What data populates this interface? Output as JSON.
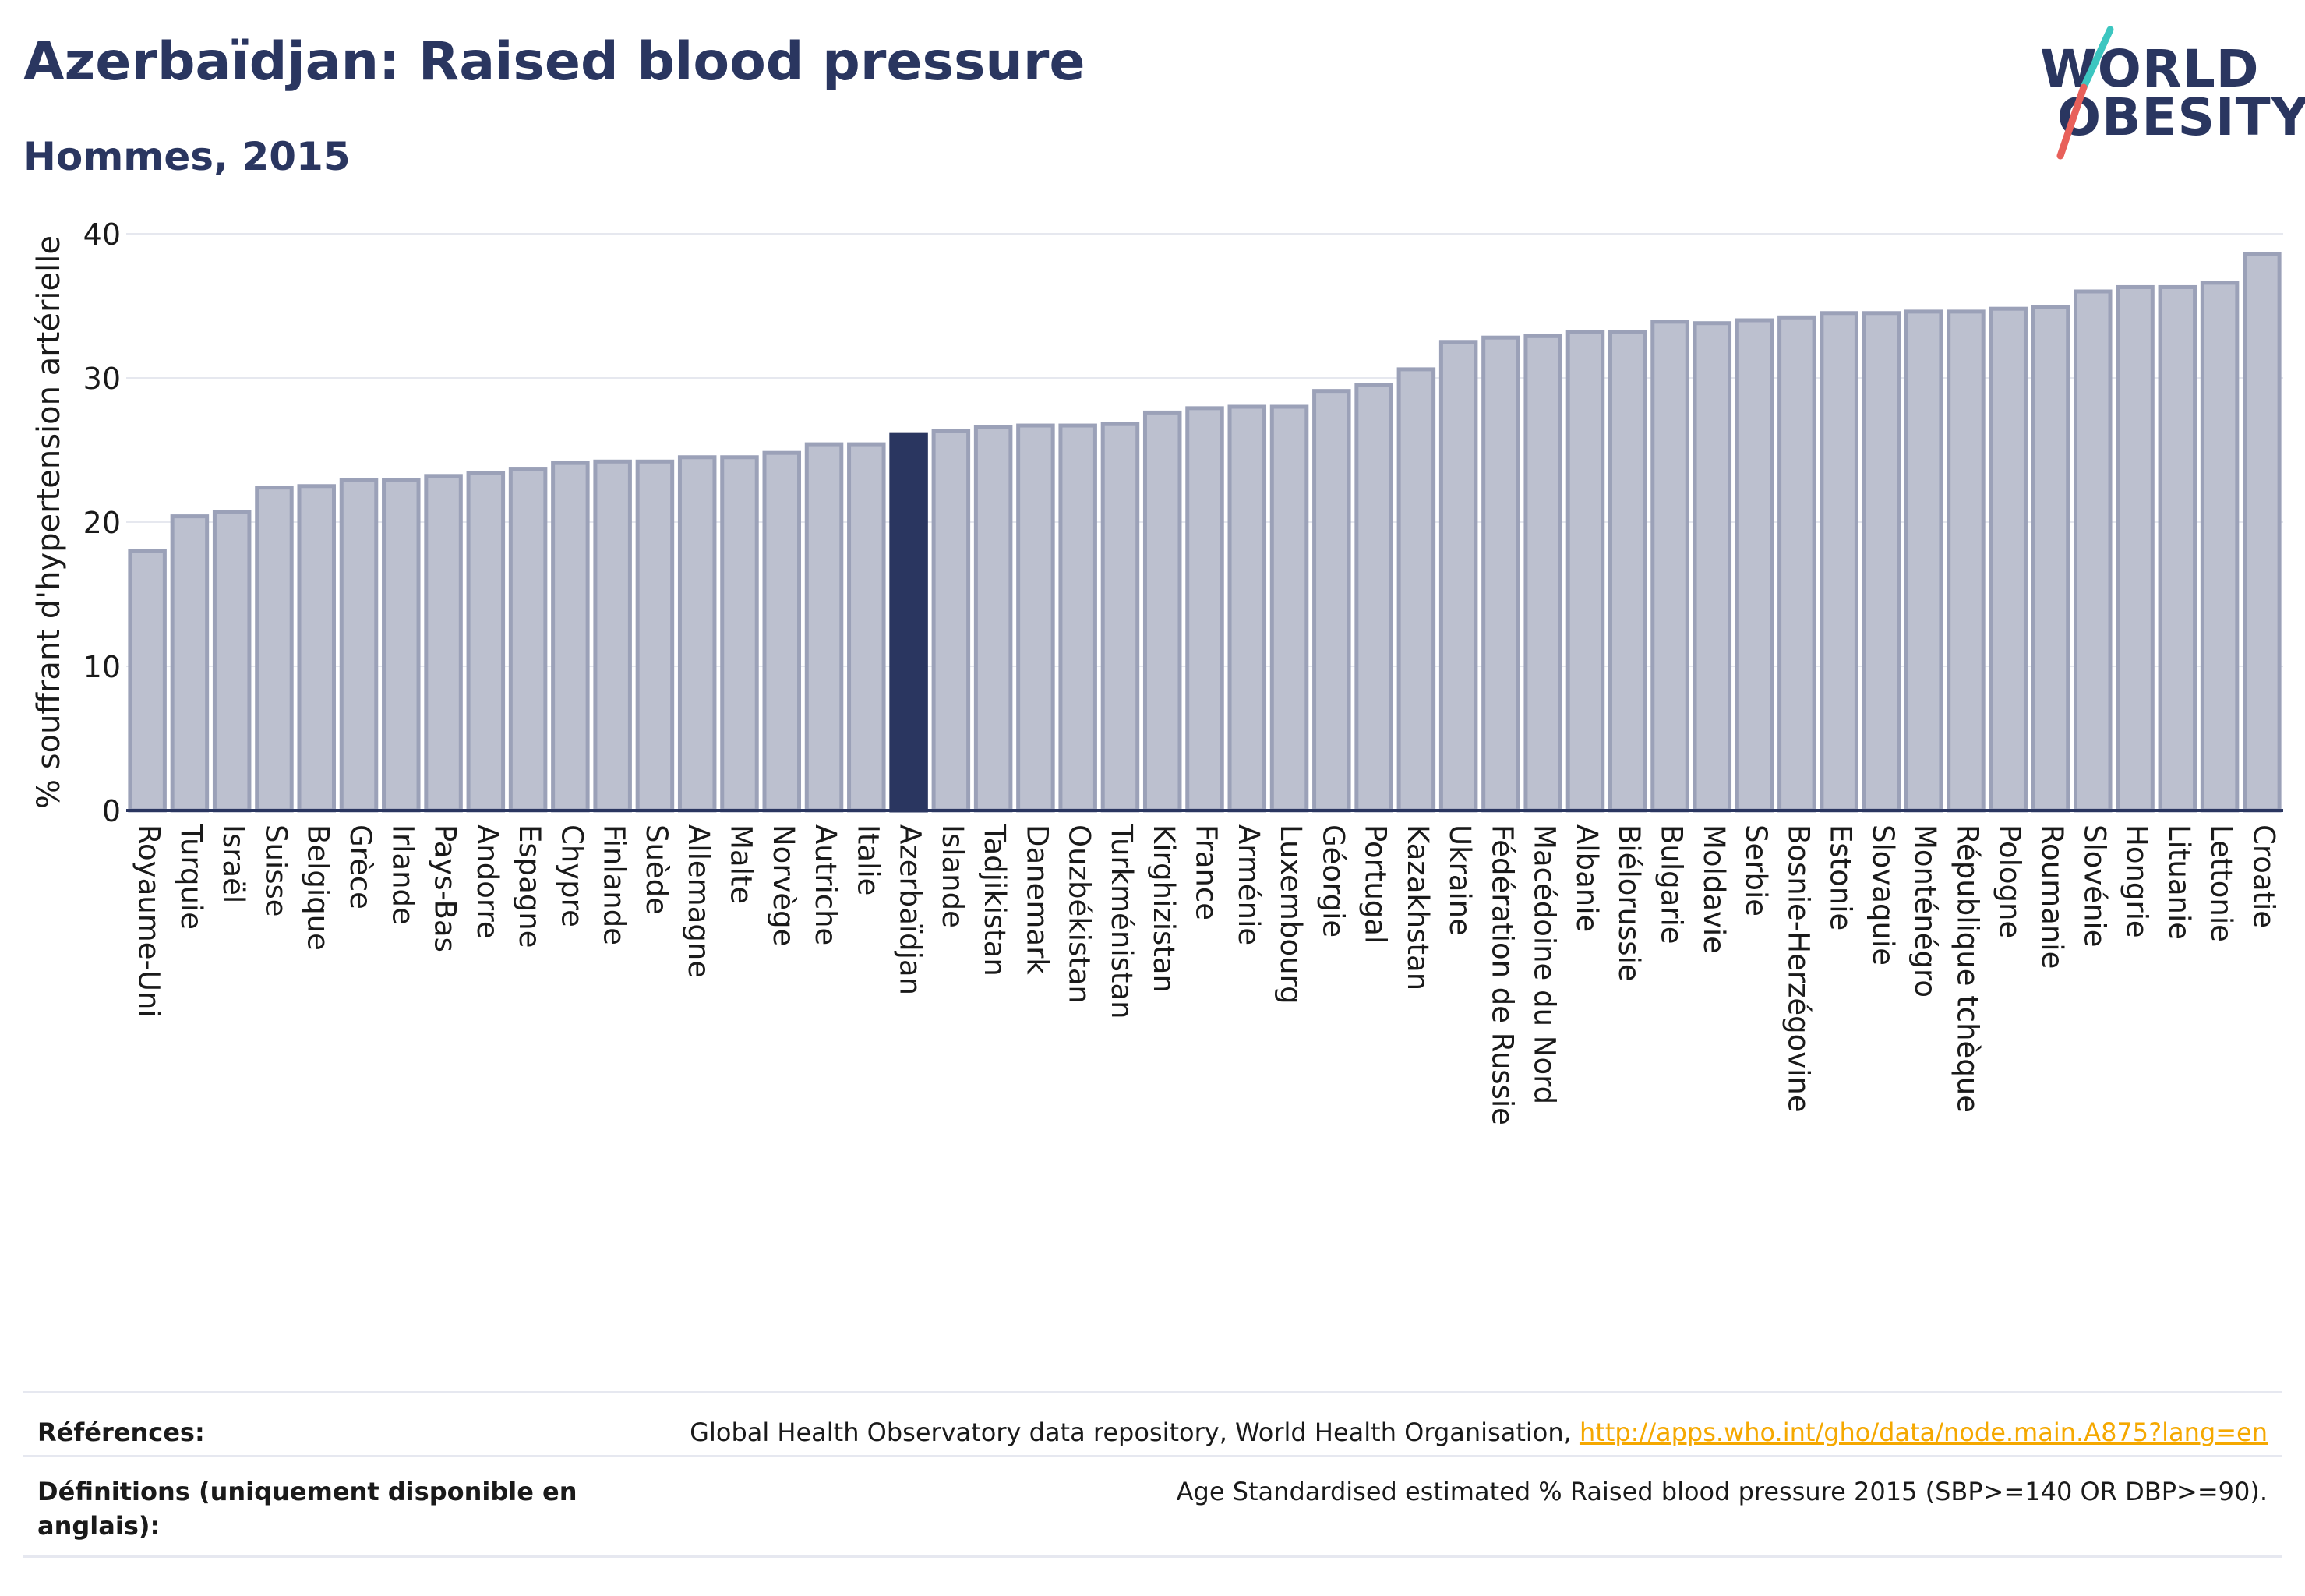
{
  "header": {
    "title": "Azerbaïdjan: Raised blood pressure",
    "subtitle": "Hommes, 2015"
  },
  "logo": {
    "line1": "WORLD",
    "line2": "OBESITY",
    "colors": {
      "text": "#2a3660",
      "slash_top": "#3cc6c0",
      "slash_bottom": "#e8605a"
    }
  },
  "colors": {
    "bar": "#bcc0cf",
    "bar_stroke": "#9ba1b8",
    "highlight": "#2a3660",
    "grid": "#e6e8ef",
    "axis_text": "#1a1a1a"
  },
  "chart_data": {
    "type": "bar",
    "title": "Azerbaïdjan: Raised blood pressure",
    "subtitle": "Hommes, 2015",
    "xlabel": "",
    "ylabel": "% souffrant d'hypertension artérielle",
    "ylim": [
      0,
      40
    ],
    "yticks": [
      0,
      10,
      20,
      30,
      40
    ],
    "grid": true,
    "highlight": "Azerbaïdjan",
    "categories": [
      "Royaume-Uni",
      "Turquie",
      "Israël",
      "Suisse",
      "Belgique",
      "Grèce",
      "Irlande",
      "Pays-Bas",
      "Andorre",
      "Espagne",
      "Chypre",
      "Finlande",
      "Suède",
      "Allemagne",
      "Malte",
      "Norvège",
      "Autriche",
      "Italie",
      "Azerbaïdjan",
      "Islande",
      "Tadjikistan",
      "Danemark",
      "Ouzbékistan",
      "Turkménistan",
      "Kirghizistan",
      "France",
      "Arménie",
      "Luxembourg",
      "Géorgie",
      "Portugal",
      "Kazakhstan",
      "Ukraine",
      "Fédération de Russie",
      "Macédoine du Nord",
      "Albanie",
      "Biélorussie",
      "Bulgarie",
      "Moldavie",
      "Serbie",
      "Bosnie-Herzégovine",
      "Estonie",
      "Slovaquie",
      "Monténégro",
      "République tchèque",
      "Pologne",
      "Roumanie",
      "Slovénie",
      "Hongrie",
      "Lituanie",
      "Lettonie",
      "Croatie"
    ],
    "values": [
      18.0,
      20.4,
      20.7,
      22.4,
      22.5,
      22.9,
      22.9,
      23.2,
      23.4,
      23.7,
      24.1,
      24.2,
      24.2,
      24.5,
      24.5,
      24.8,
      25.4,
      25.4,
      26.1,
      26.3,
      26.6,
      26.7,
      26.7,
      26.8,
      27.6,
      27.9,
      28.0,
      28.0,
      29.1,
      29.5,
      30.6,
      32.5,
      32.8,
      32.9,
      33.2,
      33.2,
      33.9,
      33.8,
      34.0,
      34.2,
      34.5,
      34.5,
      34.6,
      34.6,
      34.8,
      34.9,
      36.0,
      36.3,
      36.3,
      36.6,
      38.6
    ]
  },
  "footer": {
    "references_label": "Références:",
    "references_text": "Global Health Observatory data repository, World Health Organisation, ",
    "references_link": "http://apps.who.int/gho/data/node.main.A875?lang=en",
    "definitions_label": "Définitions (uniquement disponible en anglais):",
    "definitions_text": "Age Standardised estimated % Raised blood pressure 2015 (SBP>=140 OR DBP>=90)."
  }
}
